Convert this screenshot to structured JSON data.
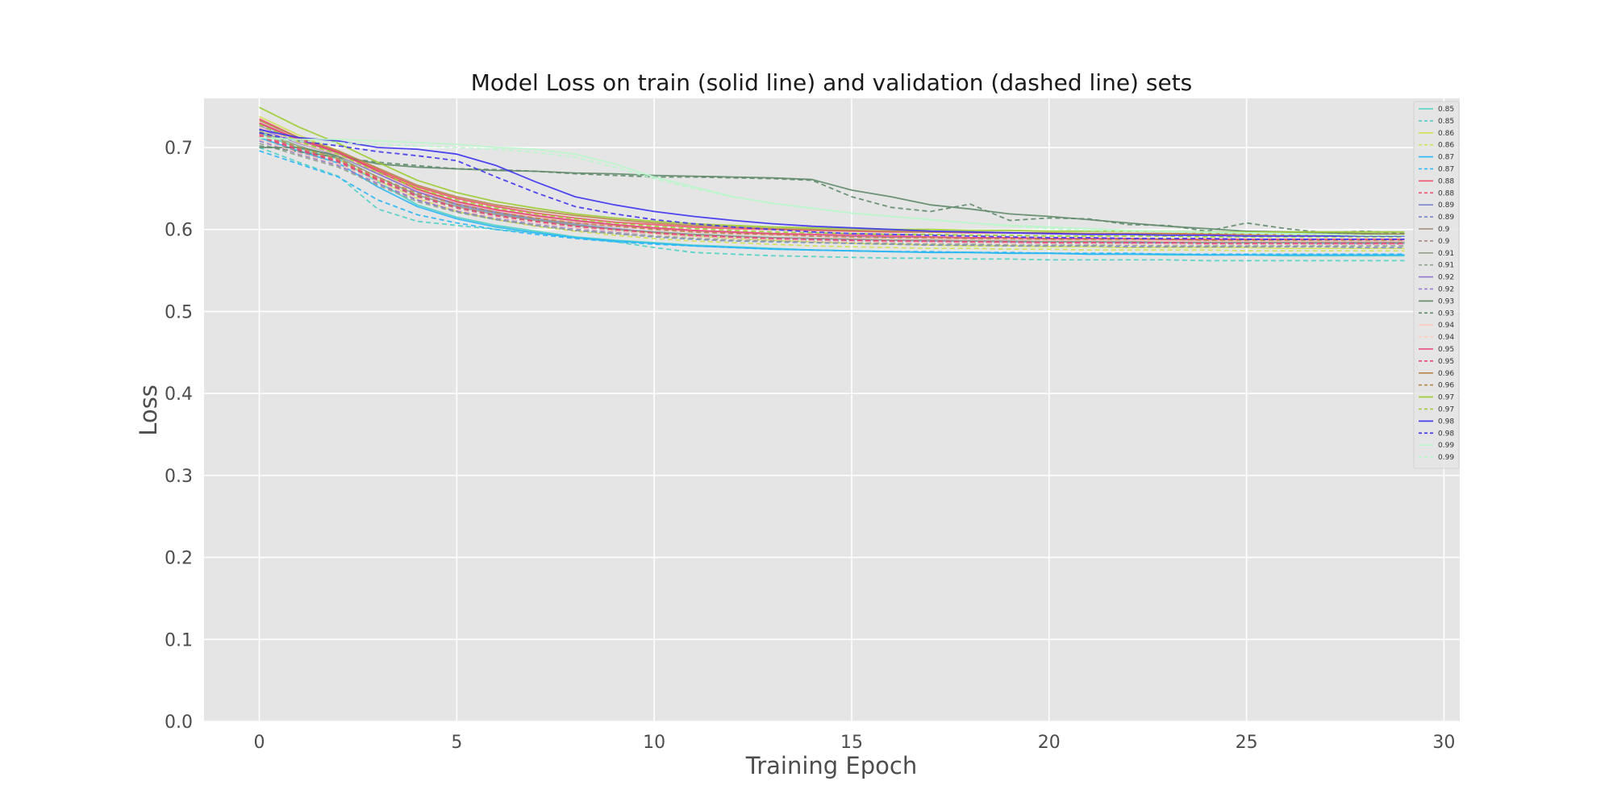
{
  "chart_data": {
    "type": "line",
    "title": "Model Loss on train (solid line) and validation (dashed line) sets",
    "xlabel": "Training Epoch",
    "ylabel": "Loss",
    "xlim": [
      -1.4,
      30.4
    ],
    "ylim": [
      0.0,
      0.76
    ],
    "xticks": [
      0,
      5,
      10,
      15,
      20,
      25,
      30
    ],
    "yticks": [
      0.0,
      0.1,
      0.2,
      0.3,
      0.4,
      0.5,
      0.6,
      0.7
    ],
    "grid": true,
    "legend_position": "top-right",
    "x": [
      0,
      1,
      2,
      3,
      4,
      5,
      6,
      7,
      8,
      9,
      10,
      11,
      12,
      13,
      14,
      15,
      16,
      17,
      18,
      19,
      20,
      21,
      22,
      23,
      24,
      25,
      26,
      27,
      28,
      29
    ],
    "series": [
      {
        "name": "0.85",
        "style": "solid",
        "color": "#4fd1c5",
        "values": [
          0.718,
          0.699,
          0.686,
          0.658,
          0.63,
          0.615,
          0.605,
          0.598,
          0.591,
          0.587,
          0.584,
          0.581,
          0.579,
          0.577,
          0.575,
          0.574,
          0.573,
          0.572,
          0.572,
          0.571,
          0.571,
          0.57,
          0.57,
          0.569,
          0.569,
          0.569,
          0.568,
          0.568,
          0.568,
          0.568
        ]
      },
      {
        "name": "0.85",
        "style": "dashed",
        "color": "#4fd1c5",
        "values": [
          0.7,
          0.682,
          0.665,
          0.625,
          0.61,
          0.605,
          0.6,
          0.596,
          0.59,
          0.585,
          0.578,
          0.572,
          0.57,
          0.568,
          0.567,
          0.566,
          0.565,
          0.565,
          0.564,
          0.564,
          0.563,
          0.563,
          0.563,
          0.563,
          0.562,
          0.562,
          0.562,
          0.562,
          0.562,
          0.562
        ]
      },
      {
        "name": "0.86",
        "style": "solid",
        "color": "#d4e157",
        "values": [
          0.738,
          0.715,
          0.696,
          0.674,
          0.65,
          0.634,
          0.622,
          0.613,
          0.606,
          0.6,
          0.596,
          0.592,
          0.589,
          0.587,
          0.585,
          0.583,
          0.582,
          0.581,
          0.58,
          0.58,
          0.579,
          0.579,
          0.578,
          0.578,
          0.578,
          0.578,
          0.577,
          0.577,
          0.577,
          0.577
        ]
      },
      {
        "name": "0.86",
        "style": "dashed",
        "color": "#d4e157",
        "values": [
          0.722,
          0.7,
          0.686,
          0.66,
          0.638,
          0.622,
          0.612,
          0.604,
          0.598,
          0.593,
          0.589,
          0.586,
          0.584,
          0.582,
          0.58,
          0.579,
          0.578,
          0.577,
          0.577,
          0.576,
          0.576,
          0.575,
          0.575,
          0.575,
          0.575,
          0.574,
          0.574,
          0.574,
          0.574,
          0.574
        ]
      },
      {
        "name": "0.87",
        "style": "solid",
        "color": "#29b6f6",
        "values": [
          0.712,
          0.696,
          0.681,
          0.652,
          0.628,
          0.613,
          0.603,
          0.596,
          0.59,
          0.586,
          0.583,
          0.58,
          0.578,
          0.576,
          0.575,
          0.574,
          0.573,
          0.572,
          0.572,
          0.571,
          0.571,
          0.57,
          0.57,
          0.57,
          0.569,
          0.569,
          0.569,
          0.569,
          0.569,
          0.569
        ]
      },
      {
        "name": "0.87",
        "style": "dashed",
        "color": "#29b6f6",
        "values": [
          0.696,
          0.68,
          0.664,
          0.636,
          0.618,
          0.608,
          0.6,
          0.594,
          0.589,
          0.585,
          0.582,
          0.58,
          0.578,
          0.576,
          0.575,
          0.574,
          0.573,
          0.573,
          0.572,
          0.572,
          0.571,
          0.571,
          0.571,
          0.57,
          0.57,
          0.57,
          0.57,
          0.57,
          0.57,
          0.57
        ]
      },
      {
        "name": "0.88",
        "style": "solid",
        "color": "#f0506e",
        "values": [
          0.735,
          0.712,
          0.694,
          0.673,
          0.652,
          0.638,
          0.628,
          0.62,
          0.614,
          0.609,
          0.606,
          0.603,
          0.601,
          0.6,
          0.599,
          0.598,
          0.597,
          0.597,
          0.596,
          0.596,
          0.595,
          0.595,
          0.595,
          0.595,
          0.594,
          0.594,
          0.594,
          0.594,
          0.594,
          0.594
        ]
      },
      {
        "name": "0.88",
        "style": "dashed",
        "color": "#f0506e",
        "values": [
          0.716,
          0.698,
          0.684,
          0.662,
          0.642,
          0.628,
          0.618,
          0.611,
          0.605,
          0.6,
          0.596,
          0.593,
          0.591,
          0.589,
          0.588,
          0.587,
          0.586,
          0.585,
          0.585,
          0.584,
          0.584,
          0.584,
          0.583,
          0.583,
          0.583,
          0.583,
          0.583,
          0.582,
          0.582,
          0.582
        ]
      },
      {
        "name": "0.89",
        "style": "solid",
        "color": "#7986cb",
        "values": [
          0.726,
          0.706,
          0.69,
          0.668,
          0.646,
          0.63,
          0.62,
          0.612,
          0.606,
          0.601,
          0.597,
          0.594,
          0.592,
          0.59,
          0.589,
          0.588,
          0.587,
          0.586,
          0.586,
          0.585,
          0.585,
          0.585,
          0.584,
          0.584,
          0.584,
          0.584,
          0.584,
          0.583,
          0.583,
          0.583
        ]
      },
      {
        "name": "0.89",
        "style": "dashed",
        "color": "#7986cb",
        "values": [
          0.71,
          0.694,
          0.68,
          0.658,
          0.636,
          0.622,
          0.612,
          0.605,
          0.599,
          0.595,
          0.591,
          0.588,
          0.586,
          0.585,
          0.584,
          0.583,
          0.582,
          0.581,
          0.581,
          0.58,
          0.58,
          0.58,
          0.579,
          0.579,
          0.579,
          0.579,
          0.579,
          0.579,
          0.578,
          0.578
        ]
      },
      {
        "name": "0.9",
        "style": "solid",
        "color": "#a1887f",
        "values": [
          0.729,
          0.709,
          0.693,
          0.671,
          0.649,
          0.634,
          0.624,
          0.616,
          0.61,
          0.605,
          0.601,
          0.598,
          0.596,
          0.594,
          0.592,
          0.591,
          0.59,
          0.589,
          0.588,
          0.588,
          0.587,
          0.587,
          0.587,
          0.586,
          0.586,
          0.586,
          0.586,
          0.585,
          0.585,
          0.585
        ]
      },
      {
        "name": "0.9",
        "style": "dashed",
        "color": "#a1887f",
        "values": [
          0.713,
          0.696,
          0.682,
          0.66,
          0.64,
          0.626,
          0.616,
          0.609,
          0.603,
          0.598,
          0.595,
          0.592,
          0.59,
          0.588,
          0.587,
          0.586,
          0.585,
          0.585,
          0.584,
          0.584,
          0.583,
          0.583,
          0.583,
          0.583,
          0.582,
          0.582,
          0.582,
          0.582,
          0.582,
          0.582
        ]
      },
      {
        "name": "0.91",
        "style": "solid",
        "color": "#8fa38a",
        "values": [
          0.72,
          0.702,
          0.688,
          0.664,
          0.642,
          0.628,
          0.618,
          0.611,
          0.605,
          0.6,
          0.597,
          0.594,
          0.592,
          0.59,
          0.589,
          0.588,
          0.587,
          0.587,
          0.586,
          0.586,
          0.585,
          0.585,
          0.585,
          0.585,
          0.584,
          0.584,
          0.584,
          0.584,
          0.584,
          0.584
        ]
      },
      {
        "name": "0.91",
        "style": "dashed",
        "color": "#8fa38a",
        "values": [
          0.705,
          0.69,
          0.676,
          0.654,
          0.634,
          0.621,
          0.612,
          0.605,
          0.599,
          0.595,
          0.592,
          0.589,
          0.587,
          0.586,
          0.585,
          0.584,
          0.583,
          0.582,
          0.582,
          0.581,
          0.581,
          0.581,
          0.581,
          0.58,
          0.58,
          0.58,
          0.58,
          0.58,
          0.58,
          0.58
        ]
      },
      {
        "name": "0.92",
        "style": "solid",
        "color": "#9575cd",
        "values": [
          0.723,
          0.705,
          0.691,
          0.668,
          0.646,
          0.632,
          0.622,
          0.614,
          0.608,
          0.604,
          0.6,
          0.597,
          0.595,
          0.593,
          0.592,
          0.591,
          0.59,
          0.589,
          0.589,
          0.588,
          0.588,
          0.588,
          0.587,
          0.587,
          0.587,
          0.587,
          0.587,
          0.586,
          0.586,
          0.586
        ]
      },
      {
        "name": "0.92",
        "style": "dashed",
        "color": "#9575cd",
        "values": [
          0.708,
          0.692,
          0.678,
          0.656,
          0.636,
          0.623,
          0.614,
          0.607,
          0.601,
          0.597,
          0.594,
          0.591,
          0.589,
          0.588,
          0.587,
          0.586,
          0.585,
          0.584,
          0.584,
          0.583,
          0.583,
          0.583,
          0.583,
          0.582,
          0.582,
          0.582,
          0.582,
          0.582,
          0.582,
          0.582
        ]
      },
      {
        "name": "0.93",
        "style": "solid",
        "color": "#5f8a6a",
        "values": [
          0.7,
          0.7,
          0.69,
          0.68,
          0.676,
          0.674,
          0.672,
          0.671,
          0.669,
          0.668,
          0.666,
          0.665,
          0.664,
          0.663,
          0.661,
          0.648,
          0.64,
          0.63,
          0.625,
          0.619,
          0.616,
          0.612,
          0.608,
          0.604,
          0.601,
          0.598,
          0.597,
          0.596,
          0.595,
          0.594
        ]
      },
      {
        "name": "0.93",
        "style": "dashed",
        "color": "#5f8a6a",
        "values": [
          0.702,
          0.695,
          0.688,
          0.682,
          0.678,
          0.674,
          0.673,
          0.671,
          0.668,
          0.666,
          0.664,
          0.664,
          0.663,
          0.662,
          0.66,
          0.64,
          0.627,
          0.622,
          0.631,
          0.611,
          0.614,
          0.613,
          0.606,
          0.605,
          0.598,
          0.608,
          0.601,
          0.596,
          0.598,
          0.595
        ]
      },
      {
        "name": "0.94",
        "style": "solid",
        "color": "#ffccbc",
        "values": [
          0.725,
          0.706,
          0.691,
          0.67,
          0.648,
          0.633,
          0.623,
          0.615,
          0.609,
          0.604,
          0.6,
          0.597,
          0.595,
          0.593,
          0.592,
          0.59,
          0.589,
          0.589,
          0.588,
          0.588,
          0.587,
          0.587,
          0.587,
          0.586,
          0.586,
          0.586,
          0.586,
          0.586,
          0.586,
          0.586
        ]
      },
      {
        "name": "0.94",
        "style": "dashed",
        "color": "#ffccbc",
        "values": [
          0.71,
          0.693,
          0.68,
          0.658,
          0.638,
          0.624,
          0.615,
          0.608,
          0.602,
          0.598,
          0.594,
          0.591,
          0.589,
          0.588,
          0.586,
          0.585,
          0.585,
          0.584,
          0.584,
          0.583,
          0.583,
          0.583,
          0.582,
          0.582,
          0.582,
          0.582,
          0.582,
          0.582,
          0.582,
          0.582
        ]
      },
      {
        "name": "0.95",
        "style": "solid",
        "color": "#ec407a",
        "values": [
          0.73,
          0.71,
          0.694,
          0.671,
          0.649,
          0.634,
          0.624,
          0.617,
          0.611,
          0.606,
          0.602,
          0.599,
          0.597,
          0.595,
          0.594,
          0.593,
          0.592,
          0.591,
          0.59,
          0.59,
          0.589,
          0.589,
          0.589,
          0.588,
          0.588,
          0.588,
          0.588,
          0.588,
          0.588,
          0.588
        ]
      },
      {
        "name": "0.95",
        "style": "dashed",
        "color": "#ec407a",
        "values": [
          0.714,
          0.697,
          0.683,
          0.661,
          0.641,
          0.627,
          0.617,
          0.61,
          0.604,
          0.6,
          0.596,
          0.593,
          0.591,
          0.589,
          0.588,
          0.587,
          0.586,
          0.586,
          0.585,
          0.585,
          0.584,
          0.584,
          0.584,
          0.584,
          0.583,
          0.583,
          0.583,
          0.583,
          0.583,
          0.583
        ]
      },
      {
        "name": "0.96",
        "style": "solid",
        "color": "#b8864b",
        "values": [
          0.733,
          0.712,
          0.696,
          0.675,
          0.654,
          0.64,
          0.63,
          0.623,
          0.617,
          0.612,
          0.608,
          0.605,
          0.603,
          0.601,
          0.6,
          0.599,
          0.598,
          0.597,
          0.597,
          0.596,
          0.596,
          0.595,
          0.595,
          0.595,
          0.595,
          0.594,
          0.594,
          0.594,
          0.594,
          0.594
        ]
      },
      {
        "name": "0.96",
        "style": "dashed",
        "color": "#b8864b",
        "values": [
          0.718,
          0.7,
          0.686,
          0.664,
          0.644,
          0.631,
          0.621,
          0.614,
          0.608,
          0.604,
          0.6,
          0.597,
          0.595,
          0.594,
          0.592,
          0.591,
          0.59,
          0.59,
          0.589,
          0.589,
          0.588,
          0.588,
          0.588,
          0.588,
          0.587,
          0.587,
          0.587,
          0.587,
          0.587,
          0.587
        ]
      },
      {
        "name": "0.97",
        "style": "solid",
        "color": "#9ccc30",
        "values": [
          0.749,
          0.725,
          0.705,
          0.682,
          0.66,
          0.645,
          0.634,
          0.626,
          0.619,
          0.614,
          0.61,
          0.607,
          0.605,
          0.603,
          0.602,
          0.601,
          0.6,
          0.6,
          0.599,
          0.599,
          0.598,
          0.598,
          0.598,
          0.598,
          0.597,
          0.597,
          0.597,
          0.597,
          0.597,
          0.597
        ]
      },
      {
        "name": "0.97",
        "style": "dashed",
        "color": "#9ccc30",
        "values": [
          0.728,
          0.707,
          0.692,
          0.67,
          0.65,
          0.636,
          0.626,
          0.619,
          0.613,
          0.608,
          0.604,
          0.601,
          0.599,
          0.597,
          0.596,
          0.595,
          0.594,
          0.594,
          0.593,
          0.593,
          0.592,
          0.592,
          0.592,
          0.592,
          0.591,
          0.591,
          0.591,
          0.591,
          0.591,
          0.591
        ]
      },
      {
        "name": "0.98",
        "style": "solid",
        "color": "#3d33ee",
        "values": [
          0.722,
          0.712,
          0.708,
          0.7,
          0.698,
          0.692,
          0.678,
          0.658,
          0.64,
          0.63,
          0.622,
          0.616,
          0.611,
          0.607,
          0.604,
          0.602,
          0.6,
          0.598,
          0.597,
          0.596,
          0.595,
          0.594,
          0.594,
          0.593,
          0.593,
          0.592,
          0.592,
          0.592,
          0.592,
          0.592
        ]
      },
      {
        "name": "0.98",
        "style": "dashed",
        "color": "#3d33ee",
        "values": [
          0.718,
          0.708,
          0.702,
          0.695,
          0.69,
          0.684,
          0.664,
          0.645,
          0.628,
          0.619,
          0.612,
          0.607,
          0.603,
          0.6,
          0.597,
          0.595,
          0.594,
          0.593,
          0.592,
          0.591,
          0.59,
          0.59,
          0.589,
          0.589,
          0.589,
          0.588,
          0.588,
          0.588,
          0.588,
          0.588
        ]
      },
      {
        "name": "0.99",
        "style": "solid",
        "color": "#b9f6ca",
        "values": [
          0.712,
          0.71,
          0.71,
          0.708,
          0.706,
          0.704,
          0.7,
          0.698,
          0.692,
          0.68,
          0.664,
          0.652,
          0.64,
          0.632,
          0.626,
          0.62,
          0.616,
          0.612,
          0.608,
          0.605,
          0.603,
          0.601,
          0.599,
          0.598,
          0.597,
          0.596,
          0.595,
          0.594,
          0.593,
          0.593
        ]
      },
      {
        "name": "0.99",
        "style": "dashed",
        "color": "#b9f6ca",
        "values": [
          0.712,
          0.708,
          0.706,
          0.704,
          0.702,
          0.7,
          0.698,
          0.694,
          0.688,
          0.676,
          0.662,
          0.65,
          0.64,
          0.632,
          0.626,
          0.62,
          0.616,
          0.612,
          0.608,
          0.604,
          0.601,
          0.599,
          0.598,
          0.597,
          0.596,
          0.595,
          0.594,
          0.594,
          0.593,
          0.593
        ]
      }
    ]
  }
}
